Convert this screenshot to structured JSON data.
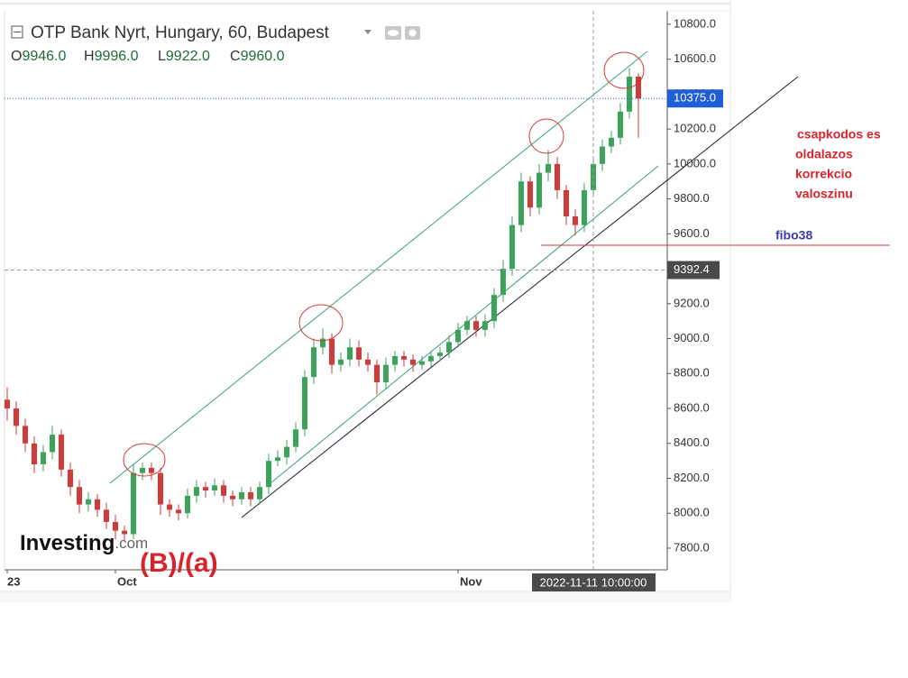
{
  "chart_data": {
    "type": "candlestick",
    "title": "OTP Bank Nyrt, Hungary, 60, Budapest",
    "ohlc_legend": [
      {
        "key": "O",
        "text": "9946.0"
      },
      {
        "key": "H",
        "text": "9996.0"
      },
      {
        "key": "L",
        "text": "9922.0"
      },
      {
        "key": "C",
        "text": "9960.0"
      }
    ],
    "categories": [
      "23",
      null,
      null,
      null,
      null,
      null,
      null,
      null,
      null,
      null,
      null,
      null,
      "Oct",
      null,
      null,
      null,
      null,
      null,
      null,
      null,
      null,
      null,
      null,
      null,
      null,
      null,
      null,
      null,
      null,
      null,
      null,
      null,
      null,
      null,
      null,
      null,
      null,
      null,
      null,
      null,
      null,
      null,
      null,
      null,
      null,
      null,
      null,
      null,
      null,
      null,
      "Nov",
      null,
      null,
      null,
      null,
      null,
      null,
      null,
      null,
      null,
      null,
      null,
      null,
      null,
      null,
      null,
      null,
      null,
      null,
      null,
      null
    ],
    "open": [
      8650,
      8600,
      8500,
      8400,
      8280,
      8350,
      8450,
      8250,
      8150,
      8050,
      8080,
      8020,
      7950,
      7900,
      7880,
      8230,
      8260,
      8230,
      8050,
      8020,
      8000,
      8100,
      8150,
      8130,
      8160,
      8100,
      8080,
      8120,
      8080,
      8150,
      8300,
      8320,
      8380,
      8480,
      8780,
      8950,
      9000,
      8850,
      8880,
      8950,
      8880,
      8850,
      8750,
      8850,
      8900,
      8880,
      8850,
      8870,
      8900,
      8920,
      8980,
      9050,
      9100,
      9050,
      9100,
      9250,
      9400,
      9650,
      9900,
      9750,
      9950,
      10000,
      9850,
      9700,
      9650,
      9850,
      10000,
      10100,
      10150,
      10300,
      10500
    ],
    "high": [
      8720,
      8640,
      8540,
      8440,
      8390,
      8500,
      8480,
      8290,
      8190,
      8120,
      8110,
      8060,
      7990,
      7930,
      8280,
      8290,
      8290,
      8260,
      8080,
      8050,
      8140,
      8190,
      8180,
      8200,
      8190,
      8130,
      8150,
      8150,
      8180,
      8340,
      8360,
      8420,
      8520,
      8820,
      9000,
      9060,
      9030,
      8920,
      9000,
      8990,
      8920,
      8880,
      8890,
      8930,
      8930,
      8910,
      8900,
      8930,
      8950,
      9020,
      9090,
      9130,
      9130,
      9140,
      9290,
      9450,
      9700,
      9950,
      9930,
      10000,
      10080,
      10040,
      9880,
      9740,
      9890,
      10040,
      10140,
      10190,
      10350,
      10550,
      10520
    ],
    "low": [
      8530,
      8450,
      8350,
      8230,
      8240,
      8310,
      8210,
      8100,
      8000,
      8010,
      7980,
      7910,
      7850,
      7840,
      7850,
      8190,
      8190,
      7990,
      7980,
      7960,
      7970,
      8060,
      8090,
      8100,
      8060,
      8040,
      8050,
      8040,
      8050,
      8110,
      8270,
      8280,
      8350,
      8440,
      8740,
      8910,
      8800,
      8810,
      8840,
      8840,
      8810,
      8680,
      8710,
      8810,
      8840,
      8810,
      8820,
      8840,
      8870,
      8890,
      8950,
      9020,
      9010,
      9010,
      9060,
      9210,
      9360,
      9610,
      9700,
      9710,
      9900,
      9800,
      9650,
      9590,
      9610,
      9810,
      9960,
      10060,
      10110,
      10260,
      10150
    ],
    "close": [
      8600,
      8500,
      8400,
      8280,
      8350,
      8450,
      8250,
      8150,
      8050,
      8080,
      8020,
      7950,
      7900,
      7880,
      8230,
      8260,
      8230,
      8050,
      8020,
      8000,
      8100,
      8150,
      8130,
      8160,
      8100,
      8080,
      8120,
      8080,
      8150,
      8300,
      8320,
      8380,
      8480,
      8780,
      8950,
      9000,
      8850,
      8880,
      8950,
      8880,
      8850,
      8750,
      8850,
      8900,
      8880,
      8850,
      8870,
      8900,
      8920,
      8980,
      9050,
      9100,
      9050,
      9100,
      9250,
      9400,
      9650,
      9900,
      9750,
      9950,
      10000,
      9850,
      9700,
      9650,
      9850,
      10000,
      10100,
      10150,
      10300,
      10500,
      10375
    ],
    "up_color": "#3ca35b",
    "down_color": "#cf3a3a",
    "ylim": [
      7676,
      10877
    ],
    "yticks": [
      {
        "value": 7800,
        "label": "7800.0"
      },
      {
        "value": 8000,
        "label": "8000.0"
      },
      {
        "value": 8200,
        "label": "8200.0"
      },
      {
        "value": 8400,
        "label": "8400.0"
      },
      {
        "value": 8600,
        "label": "8600.0"
      },
      {
        "value": 8800,
        "label": "8800.0"
      },
      {
        "value": 9000,
        "label": "9000.0"
      },
      {
        "value": 9200,
        "label": "9200.0"
      },
      {
        "value": 9400,
        "label": "9400.0"
      },
      {
        "value": 9600,
        "label": "9600.0"
      },
      {
        "value": 9800,
        "label": "9800.0"
      },
      {
        "value": 10000,
        "label": "10000.0"
      },
      {
        "value": 10200,
        "label": "10200.0"
      },
      {
        "value": 10400,
        "label": "10400.0"
      },
      {
        "value": 10600,
        "label": "10600.0"
      },
      {
        "value": 10800,
        "label": "10800.0"
      }
    ],
    "last_price": {
      "value": 10375,
      "label": "10375.0"
    },
    "crosshair": {
      "y": {
        "value": 9392.4,
        "label": "9392.4"
      },
      "x_label": "2022-11-11 10:00:00"
    },
    "annotations": {
      "comment": [
        "csapkodos es",
        "oldalazos",
        "korrekcio",
        "valoszinu"
      ],
      "fibo": "fibo38",
      "wave": "(B)/(a)"
    },
    "brand": [
      "Investing",
      ".com"
    ]
  }
}
